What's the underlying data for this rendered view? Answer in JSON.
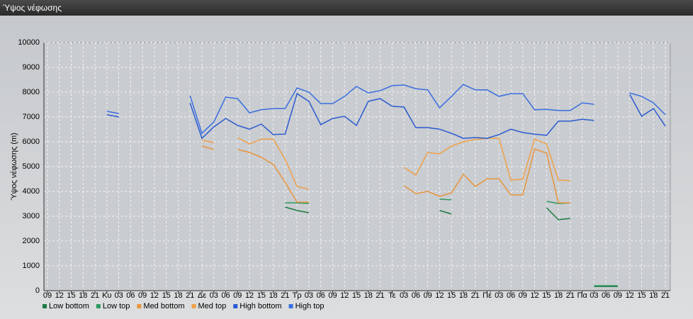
{
  "window_title": "Ύψος νέφωσης",
  "chart_data": {
    "type": "line",
    "ylabel": "Ύψος νέφωσης (m)",
    "categories": [
      "09",
      "12",
      "15",
      "18",
      "21",
      "Κυ",
      "03",
      "06",
      "09",
      "12",
      "15",
      "18",
      "21",
      "Δε",
      "03",
      "06",
      "09",
      "12",
      "15",
      "18",
      "21",
      "Τρ",
      "03",
      "06",
      "09",
      "12",
      "15",
      "18",
      "21",
      "Τε",
      "03",
      "06",
      "09",
      "12",
      "15",
      "18",
      "21",
      "Πέ",
      "03",
      "06",
      "09",
      "12",
      "15",
      "18",
      "21",
      "Πα",
      "03",
      "06",
      "09",
      "12",
      "15",
      "18",
      "21"
    ],
    "ylim": [
      0,
      10000
    ],
    "yticks": [
      0,
      1000,
      2000,
      3000,
      4000,
      5000,
      6000,
      7000,
      8000,
      9000,
      10000
    ],
    "grid": true,
    "legend": "bottom",
    "series": [
      {
        "name": "Low bottom",
        "color": "#1f7a45",
        "values": [
          null,
          null,
          null,
          null,
          null,
          null,
          null,
          null,
          null,
          null,
          null,
          null,
          null,
          null,
          null,
          null,
          null,
          null,
          null,
          null,
          3370,
          3230,
          3140,
          null,
          null,
          null,
          null,
          null,
          null,
          null,
          null,
          null,
          null,
          3230,
          3090,
          null,
          null,
          null,
          null,
          null,
          null,
          null,
          3340,
          2860,
          2910,
          null,
          170,
          170,
          170,
          null,
          null,
          null,
          null
        ]
      },
      {
        "name": "Low top",
        "color": "#2f9a60",
        "values": [
          null,
          null,
          null,
          null,
          null,
          null,
          null,
          null,
          null,
          null,
          null,
          null,
          null,
          null,
          null,
          null,
          null,
          null,
          null,
          null,
          3540,
          3540,
          3510,
          null,
          null,
          null,
          null,
          null,
          null,
          null,
          null,
          null,
          null,
          3690,
          3660,
          null,
          null,
          null,
          null,
          null,
          null,
          null,
          3600,
          3510,
          3540,
          null,
          200,
          200,
          200,
          null,
          null,
          null,
          null
        ]
      },
      {
        "name": "Med bottom",
        "color": "#e8943a",
        "values": [
          null,
          null,
          null,
          null,
          null,
          null,
          null,
          null,
          null,
          null,
          null,
          null,
          null,
          5830,
          5690,
          null,
          5690,
          5570,
          5370,
          5090,
          4370,
          3570,
          3570,
          null,
          null,
          null,
          null,
          null,
          null,
          null,
          4230,
          3910,
          4000,
          3800,
          3940,
          4690,
          4200,
          4510,
          4510,
          3860,
          3860,
          5710,
          5540,
          3540,
          3540,
          null,
          null,
          null,
          null,
          null,
          null,
          null,
          null
        ]
      },
      {
        "name": "Med top",
        "color": "#f0a048",
        "values": [
          null,
          null,
          null,
          null,
          null,
          null,
          null,
          null,
          null,
          null,
          null,
          null,
          null,
          6060,
          5970,
          null,
          6170,
          5910,
          6110,
          6110,
          5290,
          4200,
          4090,
          null,
          null,
          null,
          null,
          null,
          null,
          null,
          4970,
          4660,
          5570,
          5510,
          5830,
          6000,
          6090,
          6140,
          6140,
          4460,
          4490,
          6110,
          5910,
          4460,
          4430,
          null,
          null,
          null,
          null,
          null,
          null,
          null,
          null
        ]
      },
      {
        "name": "High bottom",
        "color": "#2a5bd0",
        "values": [
          null,
          null,
          null,
          null,
          null,
          7090,
          7000,
          null,
          null,
          null,
          null,
          null,
          7570,
          6140,
          6600,
          6940,
          6660,
          6510,
          6710,
          6290,
          6310,
          7940,
          7630,
          6690,
          6940,
          7030,
          6660,
          7630,
          7740,
          7430,
          7400,
          6570,
          6570,
          6510,
          6340,
          6140,
          6170,
          6140,
          6290,
          6510,
          6370,
          6310,
          6260,
          6830,
          6830,
          6910,
          6860,
          null,
          null,
          7910,
          7030,
          7340,
          6630
        ]
      },
      {
        "name": "High top",
        "color": "#3a6ee0",
        "values": [
          null,
          null,
          null,
          null,
          null,
          7230,
          7140,
          null,
          null,
          null,
          null,
          null,
          7860,
          6340,
          6800,
          7800,
          7740,
          7170,
          7290,
          7340,
          7340,
          8170,
          8000,
          7540,
          7540,
          7830,
          8230,
          7970,
          8060,
          8260,
          8290,
          8140,
          8090,
          7370,
          7830,
          8310,
          8090,
          8090,
          7830,
          7940,
          7940,
          7290,
          7310,
          7260,
          7260,
          7570,
          7510,
          null,
          null,
          7970,
          7830,
          7570,
          7090
        ]
      }
    ]
  }
}
